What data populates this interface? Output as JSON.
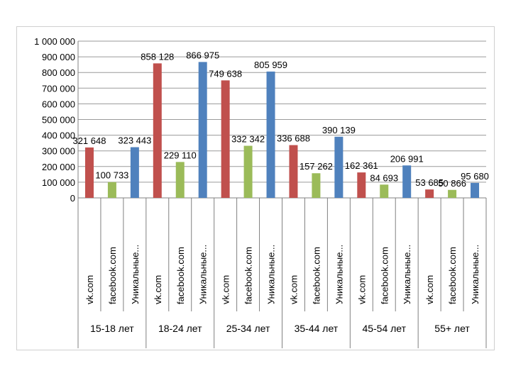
{
  "chart_data": {
    "type": "bar",
    "groups": [
      "15-18 лет",
      "18-24 лет",
      "25-34 лет",
      "35-44 лет",
      "45-54 лет",
      "55+ лет"
    ],
    "subcategories": [
      "vk.com",
      "facebook.com",
      "Уникальные..."
    ],
    "series": [
      {
        "values": [
          321648,
          858128,
          749638,
          336688,
          162361,
          53685
        ],
        "labels": [
          "321 648",
          "858 128",
          "749 638",
          "336 688",
          "162 361",
          "53 685"
        ],
        "color": "#c0504d"
      },
      {
        "values": [
          100733,
          229110,
          332342,
          157262,
          84693,
          50866
        ],
        "labels": [
          "100 733",
          "229 110",
          "332 342",
          "157 262",
          "84 693",
          "50 866"
        ],
        "color": "#9bbb59"
      },
      {
        "values": [
          323443,
          866975,
          805959,
          390139,
          206991,
          95680
        ],
        "labels": [
          "323 443",
          "866 975",
          "805 959",
          "390 139",
          "206 991",
          "95 680"
        ],
        "color": "#4f81bd"
      }
    ],
    "ylim": [
      0,
      1000000
    ],
    "yticks": [
      0,
      100000,
      200000,
      300000,
      400000,
      500000,
      600000,
      700000,
      800000,
      900000,
      1000000
    ],
    "ytick_labels": [
      "0",
      "100 000",
      "200 000",
      "300 000",
      "400 000",
      "500 000",
      "600 000",
      "700 000",
      "800 000",
      "900 000",
      "1 000 000"
    ],
    "grid": true,
    "legend": "none"
  }
}
